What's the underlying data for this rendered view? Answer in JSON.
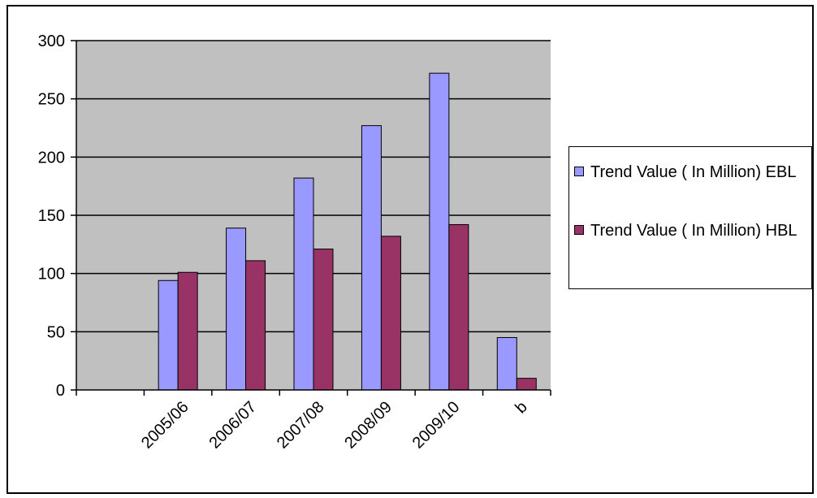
{
  "chart_data": {
    "type": "bar",
    "categories": [
      "",
      "2005/06",
      "2006/07",
      "2007/08",
      "2008/09",
      "2009/10",
      "b"
    ],
    "series": [
      {
        "name": "Trend Value ( In Million) EBL",
        "color": "#9999ff",
        "values": [
          null,
          94,
          139,
          182,
          227,
          272,
          45
        ]
      },
      {
        "name": "Trend Value ( In Million) HBL",
        "color": "#993366",
        "values": [
          null,
          101,
          111,
          121,
          132,
          142,
          10
        ]
      }
    ],
    "ylim": [
      0,
      300
    ],
    "yticks": [
      0,
      50,
      100,
      150,
      200,
      250,
      300
    ],
    "grid": true,
    "plot_background": "#c0c0c0",
    "legend_position": "right"
  }
}
